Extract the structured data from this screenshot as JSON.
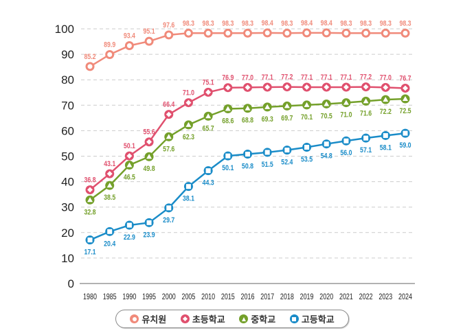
{
  "chart_data": {
    "type": "line",
    "categories": [
      "1980",
      "1985",
      "1990",
      "1995",
      "2000",
      "2005",
      "2010",
      "2015",
      "2016",
      "2017",
      "2018",
      "2019",
      "2020",
      "2021",
      "2022",
      "2023",
      "2024"
    ],
    "ylim": [
      0,
      100
    ],
    "yticks": [
      0,
      10,
      20,
      30,
      40,
      50,
      60,
      70,
      80,
      90,
      100
    ],
    "grid": true,
    "legend_position": "bottom",
    "series": [
      {
        "name": "유치원",
        "marker": "circle",
        "color": "#f08a7a",
        "label_pos": "above",
        "values": [
          85.2,
          89.9,
          93.4,
          95.1,
          97.6,
          98.3,
          98.3,
          98.3,
          98.3,
          98.4,
          98.3,
          98.4,
          98.4,
          98.3,
          98.3,
          98.3,
          98.3
        ]
      },
      {
        "name": "초등학교",
        "marker": "diamond",
        "color": "#e0506e",
        "label_pos": "above",
        "values": [
          36.8,
          43.1,
          50.1,
          55.6,
          66.4,
          71.0,
          75.1,
          76.9,
          77.0,
          77.1,
          77.2,
          77.1,
          77.1,
          77.1,
          77.2,
          77.0,
          76.7
        ]
      },
      {
        "name": "중학교",
        "marker": "triangle",
        "color": "#74a02a",
        "label_pos": "below",
        "values": [
          32.8,
          38.5,
          46.5,
          49.8,
          57.6,
          62.3,
          65.7,
          68.6,
          68.8,
          69.3,
          69.7,
          70.1,
          70.5,
          71.0,
          71.6,
          72.2,
          72.5
        ]
      },
      {
        "name": "고등학교",
        "marker": "square",
        "color": "#1a8cc8",
        "label_pos": "below",
        "values": [
          17.1,
          20.4,
          22.9,
          23.9,
          29.7,
          38.1,
          44.3,
          50.1,
          50.8,
          51.5,
          52.4,
          53.5,
          54.8,
          56.0,
          57.1,
          58.1,
          59.0
        ]
      }
    ]
  }
}
